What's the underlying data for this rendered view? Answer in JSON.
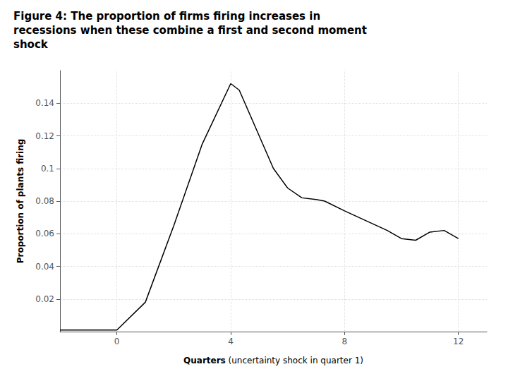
{
  "chart_data": {
    "type": "line",
    "title": "Figure 4: The proportion of firms firing increases in\nrecessions when these combine a first and second moment\nshock",
    "xlabel": "Quarters (uncertainty shock in quarter 1)",
    "ylabel": "Proportion of plants firing",
    "x": [
      -2,
      -1,
      0,
      1,
      2,
      3,
      4,
      4.3,
      5,
      5.5,
      6,
      6.5,
      7,
      7.3,
      8,
      8.5,
      9,
      9.5,
      10,
      10.5,
      11,
      11.5,
      12
    ],
    "values": [
      0.001,
      0.001,
      0.001,
      0.018,
      0.065,
      0.115,
      0.152,
      0.148,
      0.12,
      0.1,
      0.088,
      0.082,
      0.081,
      0.08,
      0.074,
      0.07,
      0.066,
      0.062,
      0.057,
      0.056,
      0.061,
      0.062,
      0.057
    ],
    "color": "#000000",
    "xlim": [
      -2,
      13
    ],
    "ylim": [
      0,
      0.16
    ],
    "xticks": [
      0,
      4,
      8,
      12
    ],
    "yticks": [
      0.02,
      0.04,
      0.06,
      0.08,
      0.1,
      0.12,
      0.14
    ],
    "grid": true
  }
}
